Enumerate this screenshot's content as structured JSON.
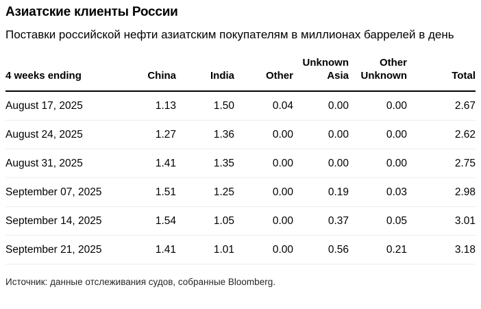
{
  "chart_data": {
    "type": "table",
    "title": "Азиатские клиенты России",
    "subtitle": "Поставки российской нефти азиатским покупателям в миллионах баррелей в день",
    "columns": [
      "4 weeks ending",
      "China",
      "India",
      "Other",
      "Unknown\nAsia",
      "Other\nUnknown",
      "Total"
    ],
    "rows": [
      {
        "label": "August 17, 2025",
        "values": [
          "1.13",
          "1.50",
          "0.04",
          "0.00",
          "0.00",
          "2.67"
        ]
      },
      {
        "label": "August 24, 2025",
        "values": [
          "1.27",
          "1.36",
          "0.00",
          "0.00",
          "0.00",
          "2.62"
        ]
      },
      {
        "label": "August 31, 2025",
        "values": [
          "1.41",
          "1.35",
          "0.00",
          "0.00",
          "0.00",
          "2.75"
        ]
      },
      {
        "label": "September 07, 2025",
        "values": [
          "1.51",
          "1.25",
          "0.00",
          "0.19",
          "0.03",
          "2.98"
        ]
      },
      {
        "label": "September 14, 2025",
        "values": [
          "1.54",
          "1.05",
          "0.00",
          "0.37",
          "0.05",
          "3.01"
        ]
      },
      {
        "label": "September 21, 2025",
        "values": [
          "1.41",
          "1.01",
          "0.00",
          "0.56",
          "0.21",
          "3.18"
        ]
      }
    ],
    "source": "Источник: данные отслеживания судов, собранные Bloomberg.",
    "layout": {
      "grid": "horizontal row dividers only",
      "header_rule": "thick black line under header",
      "value_alignment": "right"
    },
    "colors": {
      "text": "#000000",
      "header_rule": "#000000",
      "row_divider": "#ededed",
      "source_text": "#262626",
      "background": "#ffffff"
    }
  }
}
